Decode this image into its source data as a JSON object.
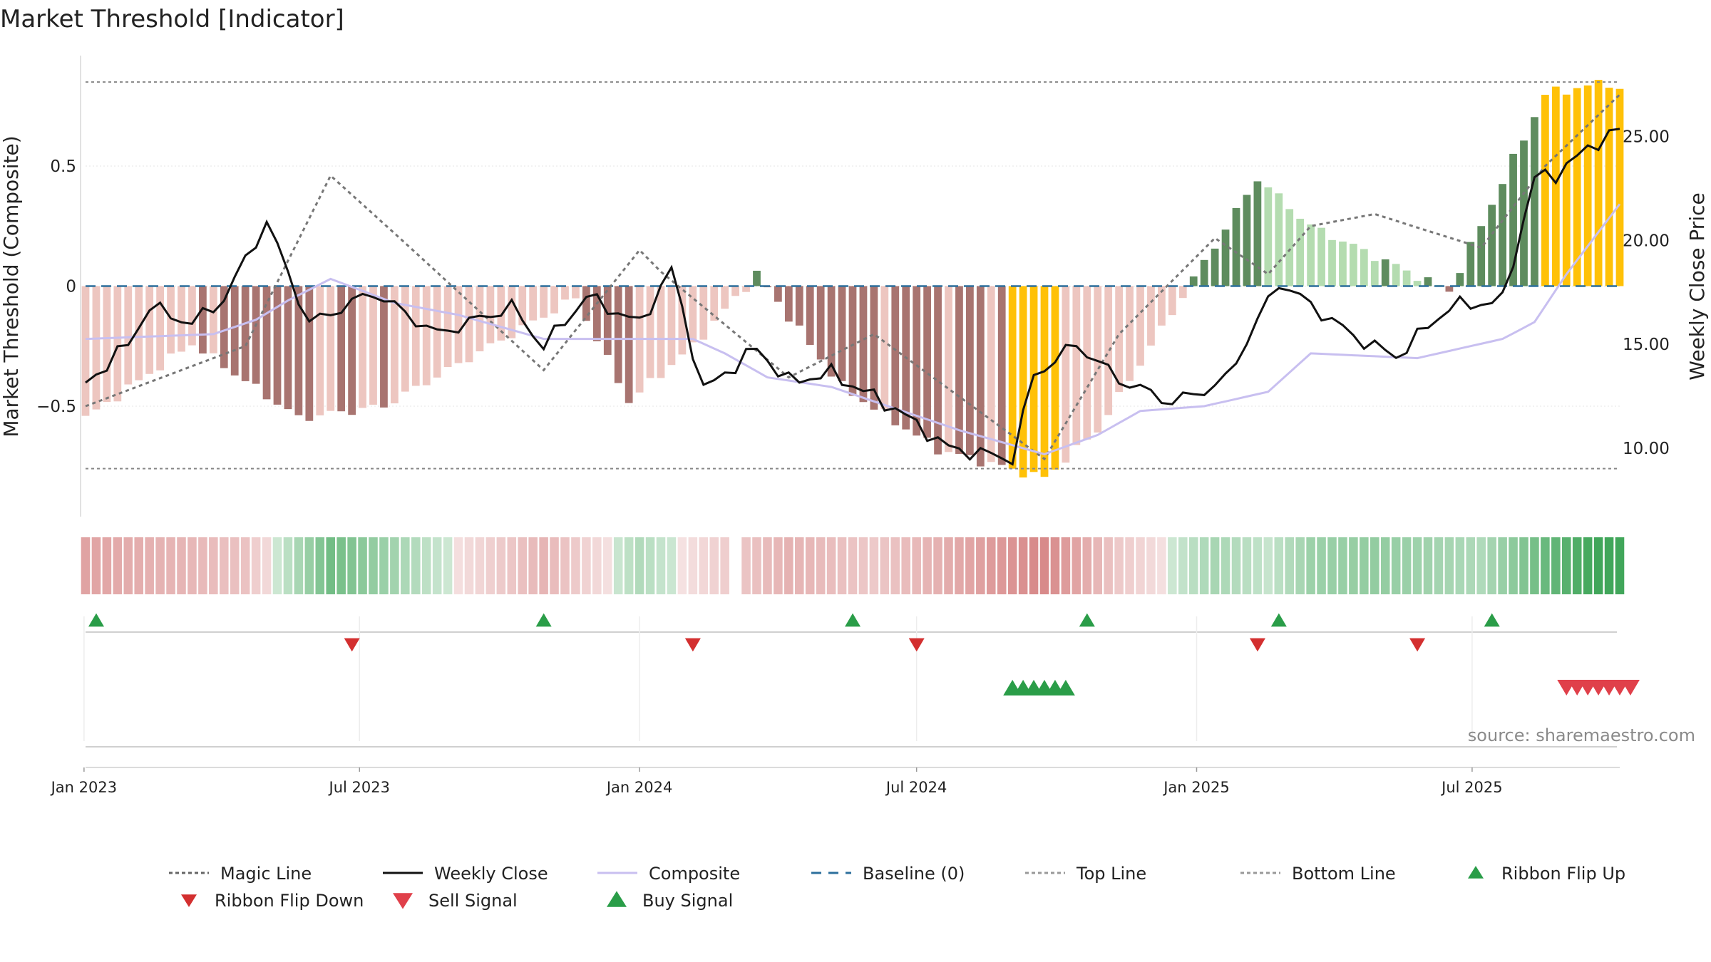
{
  "chart_data": {
    "type": "bar",
    "title": "Market Threshold [Indicator]",
    "ylabel_left": "Market Threshold (Composite)",
    "ylabel_right": "Weekly Close Price",
    "source_text": "source: sharemaestro.com",
    "x_start": "2023-01-02",
    "x_end": "2025-10-06",
    "x_ticks": [
      {
        "label": "Jan 2023",
        "date": "2023-01-01"
      },
      {
        "label": "Jul 2023",
        "date": "2023-07-01"
      },
      {
        "label": "Jan 2024",
        "date": "2024-01-01"
      },
      {
        "label": "Jul 2024",
        "date": "2024-07-01"
      },
      {
        "label": "Jan 2025",
        "date": "2025-01-01"
      },
      {
        "label": "Jul 2025",
        "date": "2025-07-01"
      }
    ],
    "y_left": {
      "ylim": [
        -0.96,
        0.96
      ],
      "ticks": [
        {
          "label": "0.5",
          "value": 0.5
        },
        {
          "label": "0",
          "value": 0
        },
        {
          "label": "−0.5",
          "value": -0.5
        }
      ]
    },
    "y_right": {
      "ylim": [
        6.7,
        28.9
      ],
      "ticks": [
        {
          "label": "25.00",
          "value": 25
        },
        {
          "label": "20.00",
          "value": 20
        },
        {
          "label": "15.00",
          "value": 15
        },
        {
          "label": "10.00",
          "value": 10
        }
      ]
    },
    "top_line": 0.85,
    "bottom_line": -0.76,
    "baseline": 0,
    "composite_anchors": [
      [
        0,
        -0.55
      ],
      [
        10,
        -0.24
      ],
      [
        20,
        -0.55
      ],
      [
        28,
        -0.5
      ],
      [
        36,
        -0.3
      ],
      [
        46,
        -0.05
      ],
      [
        51,
        -0.48
      ],
      [
        57,
        -0.25
      ],
      [
        63,
        0.05
      ],
      [
        71,
        -0.42
      ],
      [
        80,
        -0.68
      ],
      [
        90,
        -0.8
      ],
      [
        95,
        -0.6
      ],
      [
        110,
        0.45
      ],
      [
        115,
        0.25
      ],
      [
        128,
        -0.02
      ],
      [
        137,
        0.8
      ],
      [
        143,
        0.85
      ],
      [
        145,
        0.78
      ]
    ],
    "weekly_close_anchors": [
      [
        0,
        13.1
      ],
      [
        4,
        15.0
      ],
      [
        6,
        16.8
      ],
      [
        10,
        16.0
      ],
      [
        13,
        17.2
      ],
      [
        17,
        20.9
      ],
      [
        21,
        16.0
      ],
      [
        27,
        17.5
      ],
      [
        33,
        15.5
      ],
      [
        40,
        16.8
      ],
      [
        43,
        14.9
      ],
      [
        47,
        17.3
      ],
      [
        52,
        16.0
      ],
      [
        55,
        18.6
      ],
      [
        58,
        12.8
      ],
      [
        63,
        14.8
      ],
      [
        66,
        13.2
      ],
      [
        70,
        13.6
      ],
      [
        76,
        11.9
      ],
      [
        81,
        10.0
      ],
      [
        87,
        9.5
      ],
      [
        89,
        13.5
      ],
      [
        93,
        15.0
      ],
      [
        97,
        13.3
      ],
      [
        102,
        12.2
      ],
      [
        106,
        13.0
      ],
      [
        107,
        13.3
      ],
      [
        112,
        18.0
      ],
      [
        119,
        15.4
      ],
      [
        123,
        14.4
      ],
      [
        128,
        16.8
      ],
      [
        133,
        17.1
      ],
      [
        136,
        23.0
      ],
      [
        138,
        23.2
      ],
      [
        142,
        24.8
      ],
      [
        144,
        25.3
      ],
      [
        145,
        24.6
      ]
    ],
    "composite_line_anchors": [
      [
        0,
        -0.22
      ],
      [
        12,
        -0.2
      ],
      [
        16,
        -0.14
      ],
      [
        19,
        -0.06
      ],
      [
        23,
        0.03
      ],
      [
        29,
        -0.07
      ],
      [
        35,
        -0.12
      ],
      [
        43,
        -0.22
      ],
      [
        57,
        -0.22
      ],
      [
        60,
        -0.28
      ],
      [
        64,
        -0.38
      ],
      [
        70,
        -0.42
      ],
      [
        82,
        -0.6
      ],
      [
        90,
        -0.7
      ],
      [
        95,
        -0.62
      ],
      [
        99,
        -0.52
      ],
      [
        105,
        -0.5
      ],
      [
        111,
        -0.44
      ],
      [
        115,
        -0.28
      ],
      [
        125,
        -0.3
      ],
      [
        133,
        -0.22
      ],
      [
        136,
        -0.15
      ],
      [
        139,
        0.05
      ],
      [
        145,
        0.4
      ]
    ],
    "magic_line_anchors": [
      [
        0,
        -0.5
      ],
      [
        15,
        -0.25
      ],
      [
        23,
        0.46
      ],
      [
        29,
        0.22
      ],
      [
        43,
        -0.35
      ],
      [
        52,
        0.15
      ],
      [
        54,
        0.06
      ],
      [
        66,
        -0.38
      ],
      [
        74,
        -0.2
      ],
      [
        90,
        -0.72
      ],
      [
        97,
        -0.2
      ],
      [
        106,
        0.2
      ],
      [
        111,
        0.05
      ],
      [
        115,
        0.25
      ],
      [
        121,
        0.3
      ],
      [
        131,
        0.16
      ],
      [
        137,
        0.5
      ],
      [
        145,
        0.84
      ]
    ],
    "ribbon_flip_up_weeks": [
      0,
      42,
      71,
      93,
      111,
      131
    ],
    "ribbon_flip_down_weeks": [
      24,
      56,
      77,
      109,
      124
    ],
    "buy_signal_weeks": [
      87,
      88,
      89,
      90,
      91,
      92
    ],
    "sell_signal_weeks": [
      139,
      140,
      141,
      142,
      143,
      144,
      145
    ],
    "ribbon_missing_weeks": [
      61
    ],
    "colors": {
      "pos_dark": "#5e8c5e",
      "pos_light": "#b4dcb0",
      "neg_dark": "#a87470",
      "neg_light": "#edc6c0",
      "extreme": "#ffc107",
      "ribbon_green": "#41a65a",
      "ribbon_red": "#d88a8a",
      "weekly_close": "#111111",
      "composite_line": "#c8bff0",
      "magic_line": "#777777",
      "baseline": "#2c6f9c",
      "threshold_line": "#888888",
      "flip_up": "#2a9d48",
      "flip_down": "#d32f2f",
      "signal_down": "#e0404a"
    }
  },
  "legend": {
    "items": [
      {
        "label": "Magic Line",
        "icon": "dotted-line"
      },
      {
        "label": "Weekly Close",
        "icon": "solid-line"
      },
      {
        "label": "Composite",
        "icon": "lavender-line"
      },
      {
        "label": "Baseline (0)",
        "icon": "dashed-line"
      },
      {
        "label": "Top Line",
        "icon": "dotted-line"
      },
      {
        "label": "Bottom Line",
        "icon": "dotted-line"
      },
      {
        "label": "Ribbon Flip Up",
        "icon": "triangle-up"
      },
      {
        "label": "Ribbon Flip Down",
        "icon": "triangle-down"
      },
      {
        "label": "Sell Signal",
        "icon": "triangle-down"
      },
      {
        "label": "Buy Signal",
        "icon": "triangle-up"
      }
    ]
  }
}
